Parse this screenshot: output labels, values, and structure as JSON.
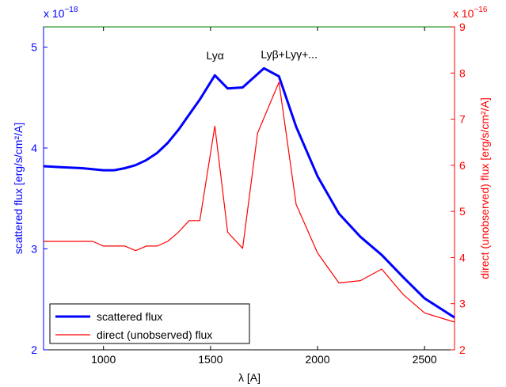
{
  "chart_data": {
    "type": "line",
    "xlabel": "λ [A]",
    "ylabel_left": "scattered flux [erg/s/cm²/A]",
    "ylabel_right": "direct (unobserved) flux [erg/s/cm²/A]",
    "xlim": [
      720,
      2640
    ],
    "ylim_left": [
      2,
      5.2
    ],
    "ylim_right": [
      2,
      9
    ],
    "left_exponent_base": "x 10",
    "left_exponent_power": "−18",
    "right_exponent_base": "x 10",
    "right_exponent_power": "−16",
    "x_ticks": [
      1000,
      1500,
      2000,
      2500
    ],
    "y_ticks_left": [
      2,
      3,
      4,
      5
    ],
    "y_ticks_right": [
      2,
      3,
      4,
      5,
      6,
      7,
      8,
      9
    ],
    "annotations": [
      {
        "text": "Lyα",
        "x": 1480,
        "y": 4.88
      },
      {
        "text": "Lyβ+Lyγ+...",
        "x": 1735,
        "y": 4.89
      }
    ],
    "legend_position": "bottom-left",
    "series": [
      {
        "name": "scattered flux",
        "axis": "left",
        "color": "#0000ff",
        "x": [
          720,
          800,
          900,
          1000,
          1050,
          1100,
          1150,
          1200,
          1250,
          1300,
          1350,
          1400,
          1450,
          1520,
          1580,
          1650,
          1750,
          1820,
          1900,
          2000,
          2100,
          2200,
          2300,
          2400,
          2500,
          2640
        ],
        "y": [
          3.82,
          3.81,
          3.8,
          3.78,
          3.78,
          3.8,
          3.83,
          3.88,
          3.95,
          4.05,
          4.18,
          4.33,
          4.48,
          4.72,
          4.59,
          4.6,
          4.79,
          4.71,
          4.21,
          3.72,
          3.35,
          3.12,
          2.94,
          2.72,
          2.51,
          2.32
        ]
      },
      {
        "name": "direct (unobserved) flux",
        "axis": "right",
        "color": "#ff0000",
        "x": [
          720,
          800,
          900,
          950,
          1000,
          1050,
          1100,
          1150,
          1200,
          1250,
          1300,
          1350,
          1400,
          1450,
          1520,
          1580,
          1650,
          1720,
          1820,
          1900,
          2000,
          2100,
          2200,
          2300,
          2400,
          2500,
          2640
        ],
        "y": [
          4.35,
          4.35,
          4.35,
          4.35,
          4.25,
          4.25,
          4.25,
          4.15,
          4.25,
          4.25,
          4.35,
          4.55,
          4.8,
          4.8,
          6.85,
          4.55,
          4.2,
          6.7,
          7.8,
          5.15,
          4.1,
          3.45,
          3.5,
          3.75,
          3.2,
          2.8,
          2.6
        ]
      }
    ]
  }
}
